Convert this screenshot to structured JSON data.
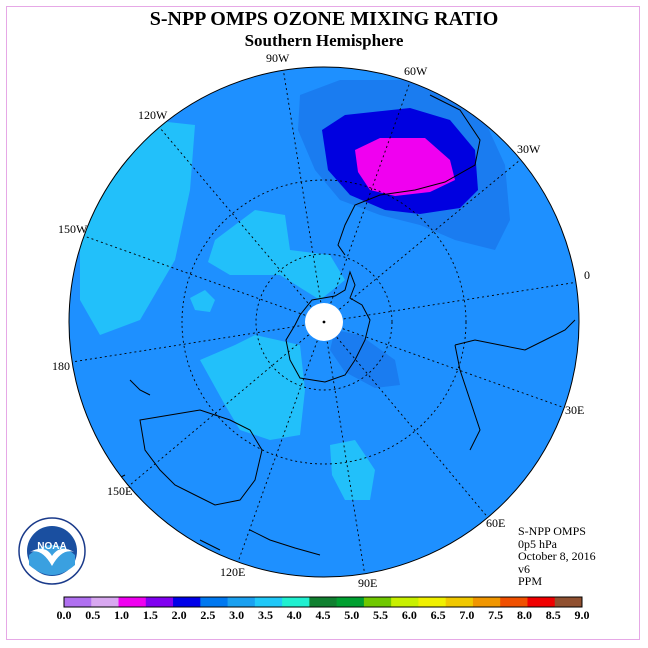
{
  "title": "S-NPP OMPS OZONE MIXING RATIO",
  "subtitle": "Southern Hemisphere",
  "longitude_labels": [
    "90W",
    "60W",
    "30W",
    "0",
    "30E",
    "60E",
    "90E",
    "120E",
    "150E",
    "180",
    "150W",
    "120W"
  ],
  "info": {
    "instrument": "S-NPP OMPS",
    "pressure": "0p5 hPa",
    "date": "October 8, 2016",
    "version": "v6",
    "units": "PPM"
  },
  "logo_text": "NOAA",
  "colorbar": {
    "ticks": [
      "0.0",
      "0.5",
      "1.0",
      "1.5",
      "2.0",
      "2.5",
      "3.0",
      "3.5",
      "4.0",
      "4.5",
      "5.0",
      "5.5",
      "6.0",
      "6.5",
      "7.0",
      "7.5",
      "8.0",
      "8.5",
      "9.0"
    ],
    "colors": [
      "#b070f0",
      "#d8a8f0",
      "#f000f0",
      "#8000f0",
      "#0000e8",
      "#0078f0",
      "#1aa0f0",
      "#20c8f8",
      "#20f0d0",
      "#108030",
      "#00a030",
      "#70c800",
      "#c8f000",
      "#f0f000",
      "#f0c800",
      "#f09600",
      "#f05000",
      "#f00000",
      "#905030"
    ]
  },
  "colors": {
    "background_field": "#1e90ff",
    "light_region": "#22c0fa",
    "medium_region": "#1a7cf0",
    "dark_region": "#0000e0",
    "max_region": "#f000f0",
    "frame": "#e6a8e6"
  }
}
